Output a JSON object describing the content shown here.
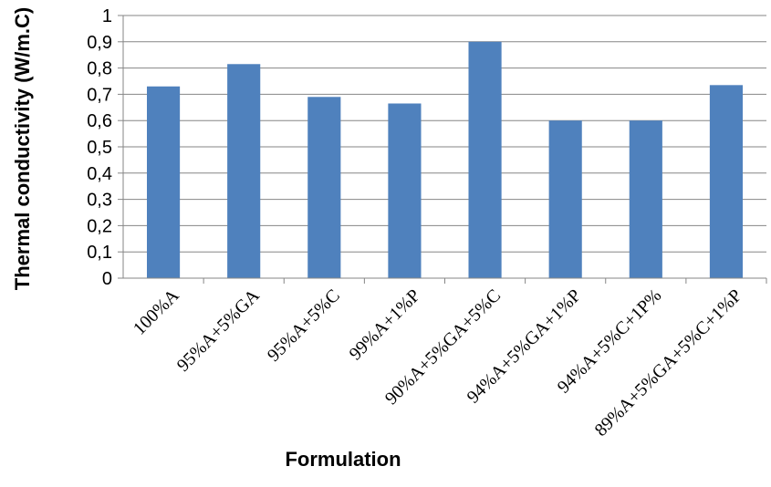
{
  "chart_data": {
    "type": "bar",
    "title": "",
    "xlabel": "Formulation",
    "ylabel": "Thermal conductivity (W/m.C)",
    "categories": [
      "100%A",
      "95%A+5%GA",
      "95%A+5%C",
      "99%A+1%P",
      "90%A+5%GA+5%C",
      "94%A+5%GA+1%P",
      "94%A+5%C+1P%",
      "89%A+5%GA+5%C+1%P"
    ],
    "values": [
      0.73,
      0.815,
      0.69,
      0.665,
      0.9,
      0.6,
      0.6,
      0.735
    ],
    "ylim": [
      0,
      1
    ],
    "yticks": [
      "0",
      "0,1",
      "0,2",
      "0,3",
      "0,4",
      "0,5",
      "0,6",
      "0,7",
      "0,8",
      "0,9",
      "1"
    ],
    "grid": true,
    "legend": "none",
    "colors": {
      "bar": "#4f81bd",
      "grid": "#868686",
      "axis": "#868686",
      "background": "#ffffff"
    }
  }
}
